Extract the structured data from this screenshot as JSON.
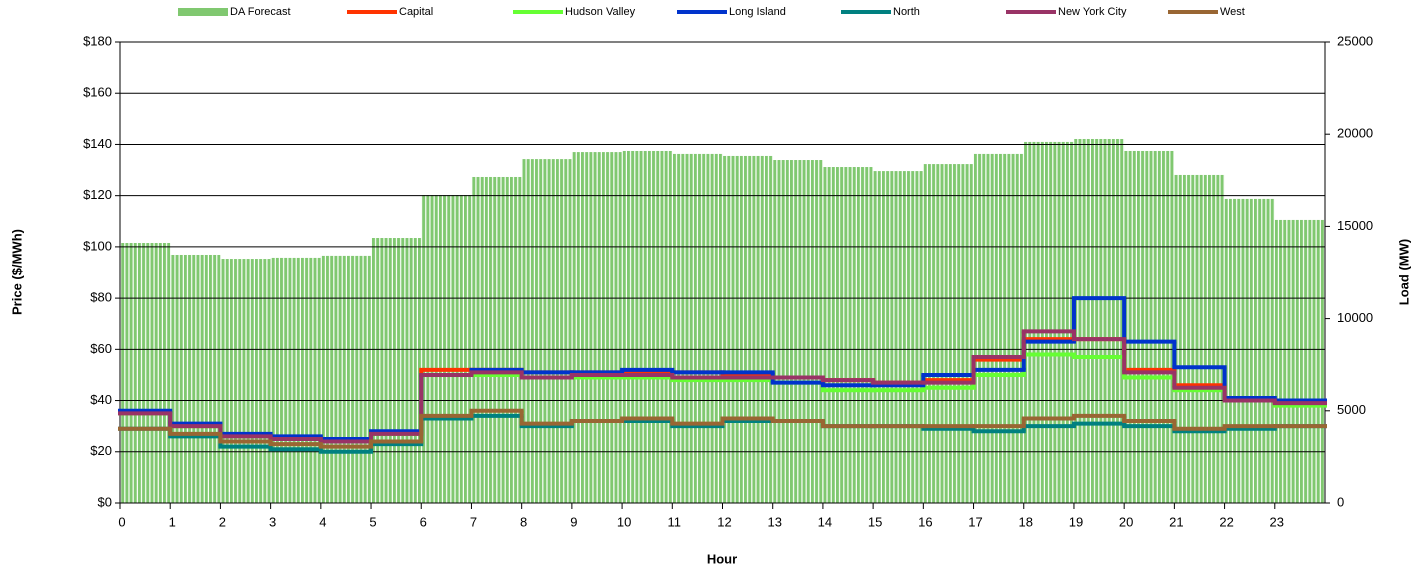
{
  "chart_data": {
    "type": "bar-step-line",
    "x_label": "Hour",
    "y_label": "Price ($/MWh)",
    "y2_label": "Load (MW)",
    "x": [
      0,
      1,
      2,
      3,
      4,
      5,
      6,
      7,
      8,
      9,
      10,
      11,
      12,
      13,
      14,
      15,
      16,
      17,
      18,
      19,
      20,
      21,
      22,
      23
    ],
    "xlim": [
      0,
      24
    ],
    "xticks": [
      0,
      1,
      2,
      3,
      4,
      5,
      6,
      7,
      8,
      9,
      10,
      11,
      12,
      13,
      14,
      15,
      16,
      17,
      18,
      19,
      20,
      21,
      22,
      23
    ],
    "ylim": [
      0,
      180
    ],
    "yticks": [
      {
        "value": 0,
        "label": "$0"
      },
      {
        "value": 20,
        "label": "$20"
      },
      {
        "value": 40,
        "label": "$40"
      },
      {
        "value": 60,
        "label": "$60"
      },
      {
        "value": 80,
        "label": "$80"
      },
      {
        "value": 100,
        "label": "$100"
      },
      {
        "value": 120,
        "label": "$120"
      },
      {
        "value": 140,
        "label": "$140"
      },
      {
        "value": 160,
        "label": "$160"
      },
      {
        "value": 180,
        "label": "$180"
      }
    ],
    "y2lim": [
      0,
      25000
    ],
    "y2ticks": [
      0,
      5000,
      10000,
      15000,
      20000,
      25000
    ],
    "grid": true,
    "legend": "top",
    "series": [
      {
        "name": "DA Forecast",
        "color": "#80c870",
        "axis": "y2",
        "kind": "bar",
        "values": [
          14100,
          13450,
          13230,
          13290,
          13400,
          14370,
          16700,
          17680,
          18650,
          19030,
          19090,
          18930,
          18820,
          18600,
          18220,
          18000,
          18380,
          18930,
          19580,
          19740,
          19090,
          17790,
          16490,
          15350
        ]
      },
      {
        "name": "Capital",
        "color": "#ff3300",
        "values": [
          35,
          30,
          26,
          25,
          24,
          27,
          52,
          52,
          51,
          51,
          51,
          51,
          50,
          49,
          48,
          47,
          48,
          56,
          64,
          64,
          52,
          46,
          40,
          39
        ]
      },
      {
        "name": "Hudson Valley",
        "color": "#66ff33",
        "values": [
          35,
          30,
          26,
          25,
          24,
          27,
          50,
          50,
          49,
          49,
          49,
          48,
          48,
          47,
          44,
          44,
          45,
          50,
          58,
          57,
          49,
          44,
          40,
          38
        ]
      },
      {
        "name": "Long Island",
        "color": "#0033cc",
        "values": [
          36,
          31,
          27,
          26,
          25,
          28,
          50,
          52,
          51,
          51,
          52,
          51,
          51,
          47,
          46,
          46,
          50,
          52,
          63,
          80,
          63,
          53,
          41,
          40
        ]
      },
      {
        "name": "North",
        "color": "#008080",
        "values": [
          29,
          26,
          22,
          21,
          20,
          23,
          33,
          34,
          30,
          32,
          32,
          30,
          32,
          32,
          30,
          30,
          29,
          28,
          30,
          31,
          30,
          28,
          29,
          30
        ]
      },
      {
        "name": "New York City",
        "color": "#993366",
        "values": [
          35,
          30,
          26,
          25,
          24,
          27,
          50,
          51,
          49,
          50,
          50,
          49,
          49,
          49,
          48,
          47,
          47,
          57,
          67,
          64,
          51,
          45,
          40,
          39
        ]
      },
      {
        "name": "West",
        "color": "#996633",
        "values": [
          29,
          27,
          24,
          23,
          22,
          24,
          34,
          36,
          31,
          32,
          33,
          31,
          33,
          32,
          30,
          30,
          30,
          30,
          33,
          34,
          32,
          29,
          30,
          30
        ]
      }
    ]
  }
}
